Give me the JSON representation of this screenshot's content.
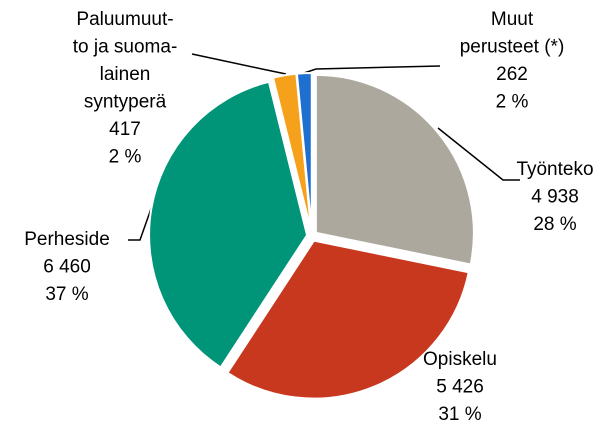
{
  "chart_data": {
    "type": "pie",
    "categories": [
      [
        "Työnteko"
      ],
      [
        "Opiskelu"
      ],
      [
        "Perheside"
      ],
      [
        "Paluumuut-",
        "to ja suoma-",
        "lainen",
        "syntyperä"
      ],
      [
        "Muut",
        "perusteet (*)"
      ]
    ],
    "values": [
      4938,
      5426,
      6460,
      417,
      262
    ],
    "value_labels": [
      "4 938",
      "5 426",
      "6 460",
      "417",
      "262"
    ],
    "percentages": [
      28,
      31,
      37,
      2,
      2
    ],
    "percentage_labels": [
      "28 %",
      "31 %",
      "37 %",
      "2 %",
      "2 %"
    ],
    "colors": [
      "#aca89e",
      "#c8381f",
      "#009479",
      "#f5a11b",
      "#1f6fd1"
    ]
  }
}
